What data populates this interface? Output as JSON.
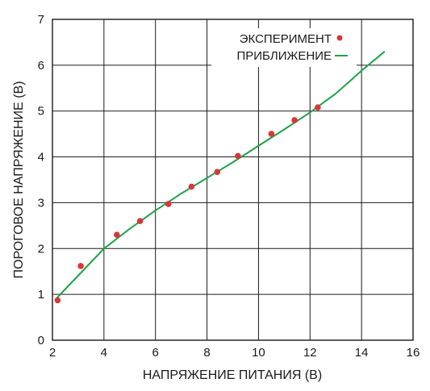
{
  "chart_data": {
    "type": "scatter",
    "title": "",
    "xlabel": "НАПРЯЖЕНИЕ ПИТАНИЯ (В)",
    "ylabel": "ПОРОГОВОЕ НАПРЯЖЕНИЕ (В)",
    "xlim": [
      2,
      16
    ],
    "ylim": [
      0,
      7
    ],
    "xticks": [
      "2",
      "4",
      "6",
      "8",
      "10",
      "12",
      "14",
      "16"
    ],
    "yticks": [
      "0",
      "1",
      "2",
      "3",
      "4",
      "5",
      "6",
      "7"
    ],
    "grid": true,
    "legend_position": "top-right",
    "series": [
      {
        "name": "ЭКСПЕРИМЕНТ",
        "kind": "scatter",
        "color": "#d8373a",
        "x": [
          2.2,
          3.1,
          4.5,
          5.4,
          6.5,
          7.4,
          8.4,
          9.2,
          10.5,
          11.4,
          12.3
        ],
        "y": [
          0.87,
          1.62,
          2.3,
          2.6,
          2.97,
          3.35,
          3.67,
          4.02,
          4.5,
          4.8,
          5.08
        ]
      },
      {
        "name": "ПРИБЛИЖЕНИЕ",
        "kind": "line",
        "color": "#1fa348",
        "x": [
          2.1,
          4.0,
          5.0,
          6.0,
          7.0,
          8.0,
          9.0,
          10.0,
          11.0,
          12.0,
          13.0,
          14.0,
          14.9
        ],
        "y": [
          0.88,
          2.0,
          2.43,
          2.83,
          3.2,
          3.54,
          3.88,
          4.24,
          4.6,
          4.97,
          5.38,
          5.88,
          6.3
        ]
      }
    ]
  }
}
